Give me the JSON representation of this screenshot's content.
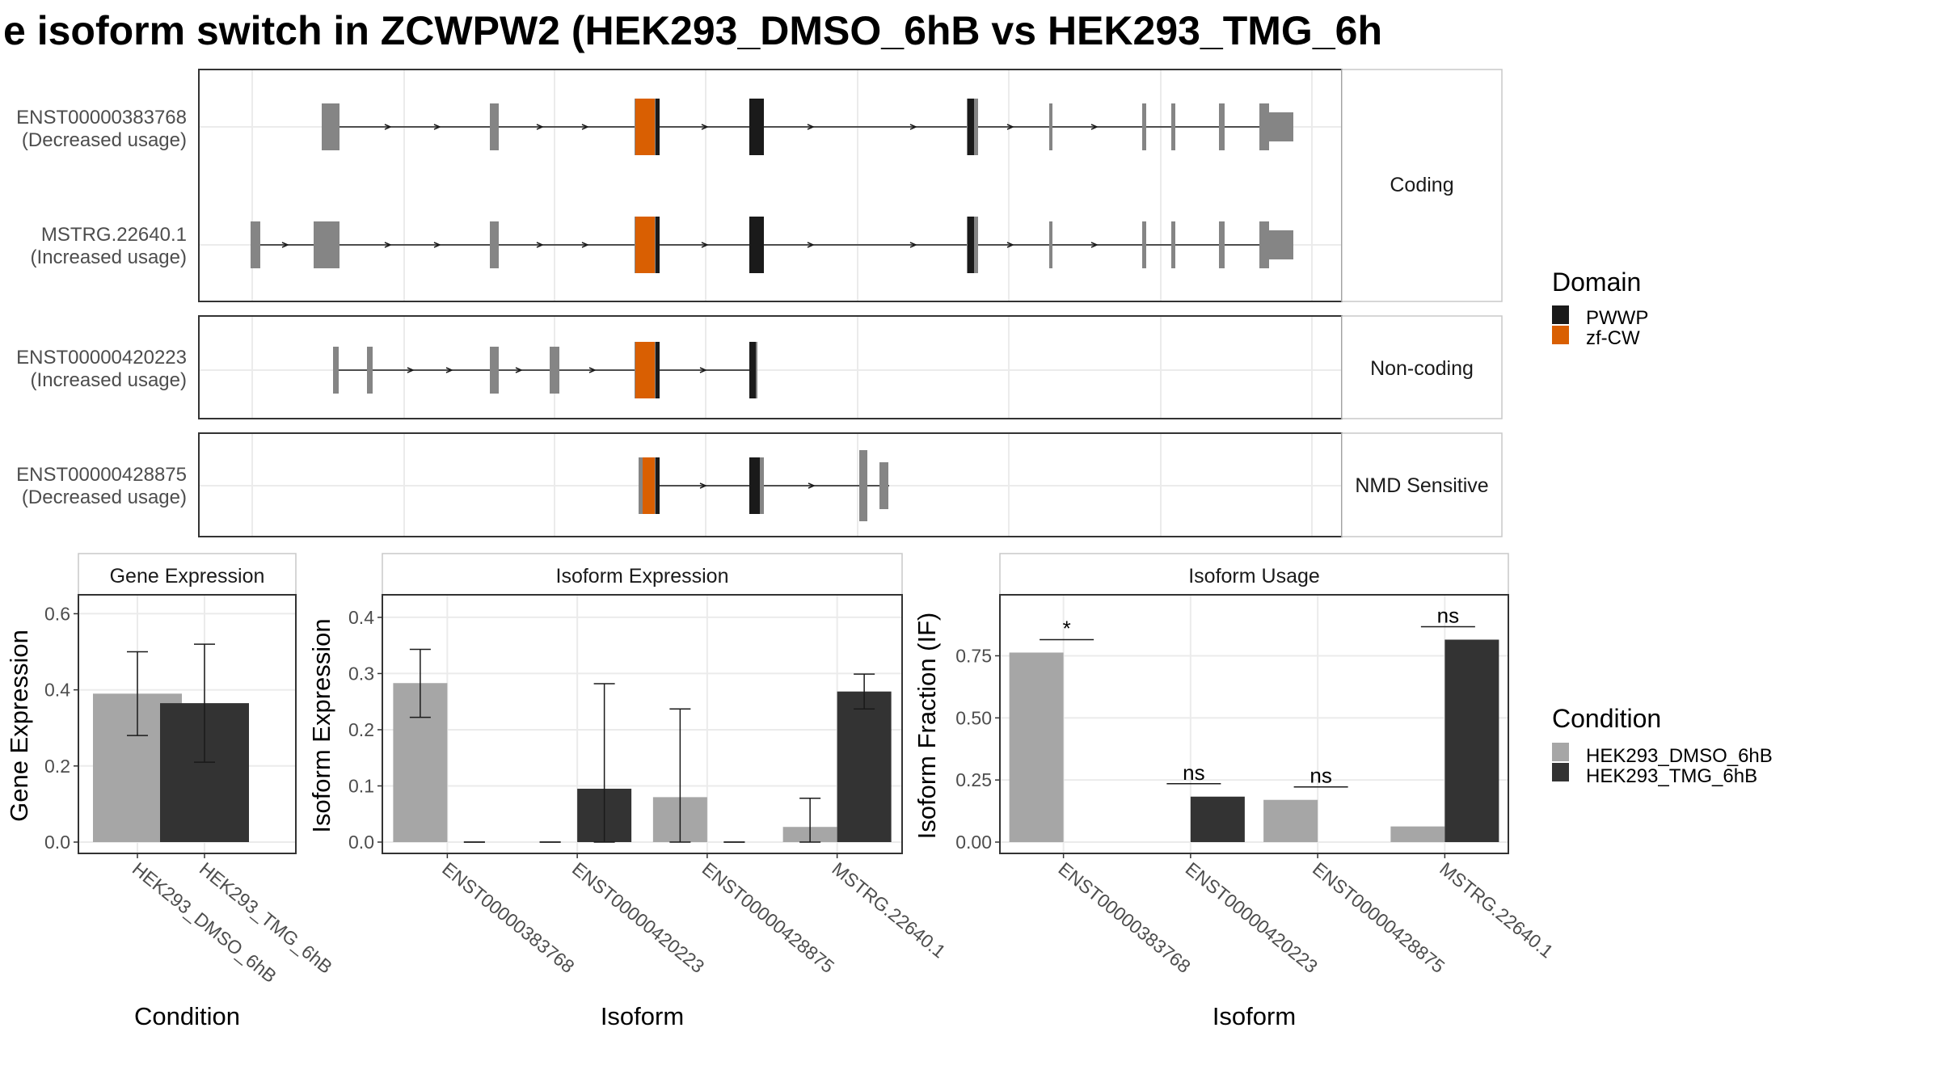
{
  "title": "e isoform switch in ZCWPW2 (HEK293_DMSO_6hB vs HEK293_TMG_6h",
  "colors": {
    "exon": "#858585",
    "pwwp": "#1a1a1a",
    "zfcw": "#d95f02",
    "dmso": "#a6a6a6",
    "tmg": "#333333"
  },
  "structure": {
    "panels": [
      {
        "label": "Coding",
        "transcripts": [
          {
            "id": "ENST00000383768",
            "usage": "(Decreased usage)"
          },
          {
            "id": "MSTRG.22640.1",
            "usage": "(Increased usage)"
          }
        ]
      },
      {
        "label": "Non-coding",
        "transcripts": [
          {
            "id": "ENST00000420223",
            "usage": "(Increased usage)"
          }
        ]
      },
      {
        "label": "NMD Sensitive",
        "transcripts": [
          {
            "id": "ENST00000428875",
            "usage": "(Decreased usage)"
          }
        ]
      }
    ]
  },
  "legend_domain": {
    "title": "Domain",
    "items": [
      {
        "label": "PWWP",
        "color": "#1a1a1a"
      },
      {
        "label": "zf-CW",
        "color": "#d95f02"
      }
    ]
  },
  "legend_condition": {
    "title": "Condition",
    "items": [
      {
        "label": "HEK293_DMSO_6hB",
        "color": "#a6a6a6"
      },
      {
        "label": "HEK293_TMG_6hB",
        "color": "#333333"
      }
    ]
  },
  "chart_data": [
    {
      "type": "bar",
      "title": "Gene Expression",
      "xlabel": "Condition",
      "ylabel": "Gene Expression",
      "ylim": [
        0,
        0.62
      ],
      "yticks": [
        "0.0",
        "0.2",
        "0.4",
        "0.6"
      ],
      "categories": [
        "HEK293_DMSO_6hB",
        "HEK293_TMG_6hB"
      ],
      "values": [
        0.39,
        0.365
      ],
      "error": [
        [
          0.28,
          0.5
        ],
        [
          0.21,
          0.52
        ]
      ],
      "grid": true
    },
    {
      "type": "bar",
      "title": "Isoform Expression",
      "xlabel": "Isoform",
      "ylabel": "Isoform Expression",
      "ylim": [
        0,
        0.42
      ],
      "yticks": [
        "0.0",
        "0.1",
        "0.2",
        "0.3",
        "0.4"
      ],
      "categories": [
        "ENST00000383768",
        "ENST00000420223",
        "ENST00000428875",
        "MSTRG.22640.1"
      ],
      "series": [
        {
          "name": "HEK293_DMSO_6hB",
          "values": [
            0.283,
            0.0,
            0.08,
            0.027
          ],
          "error": [
            [
              0.222,
              0.343
            ],
            [
              0.0,
              0.0
            ],
            [
              0.0,
              0.237
            ],
            [
              0.0,
              0.078
            ]
          ]
        },
        {
          "name": "HEK293_TMG_6hB",
          "values": [
            0.0,
            0.095,
            0.0,
            0.268
          ],
          "error": [
            [
              0.0,
              0.0
            ],
            [
              0.0,
              0.282
            ],
            [
              0.0,
              0.0
            ],
            [
              0.237,
              0.299
            ]
          ]
        }
      ],
      "grid": true
    },
    {
      "type": "bar",
      "title": "Isoform Usage",
      "xlabel": "Isoform",
      "ylabel": "Isoform Fraction (IF)",
      "ylim": [
        0,
        0.95
      ],
      "yticks": [
        "0.00",
        "0.25",
        "0.50",
        "0.75"
      ],
      "categories": [
        "ENST00000383768",
        "ENST00000420223",
        "ENST00000428875",
        "MSTRG.22640.1"
      ],
      "series": [
        {
          "name": "HEK293_DMSO_6hB",
          "values": [
            0.763,
            0.0,
            0.17,
            0.063
          ]
        },
        {
          "name": "HEK293_TMG_6hB",
          "values": [
            0.0,
            0.183,
            0.0,
            0.815
          ]
        }
      ],
      "significance": [
        "*",
        "ns",
        "ns",
        "ns"
      ],
      "grid": true
    }
  ]
}
